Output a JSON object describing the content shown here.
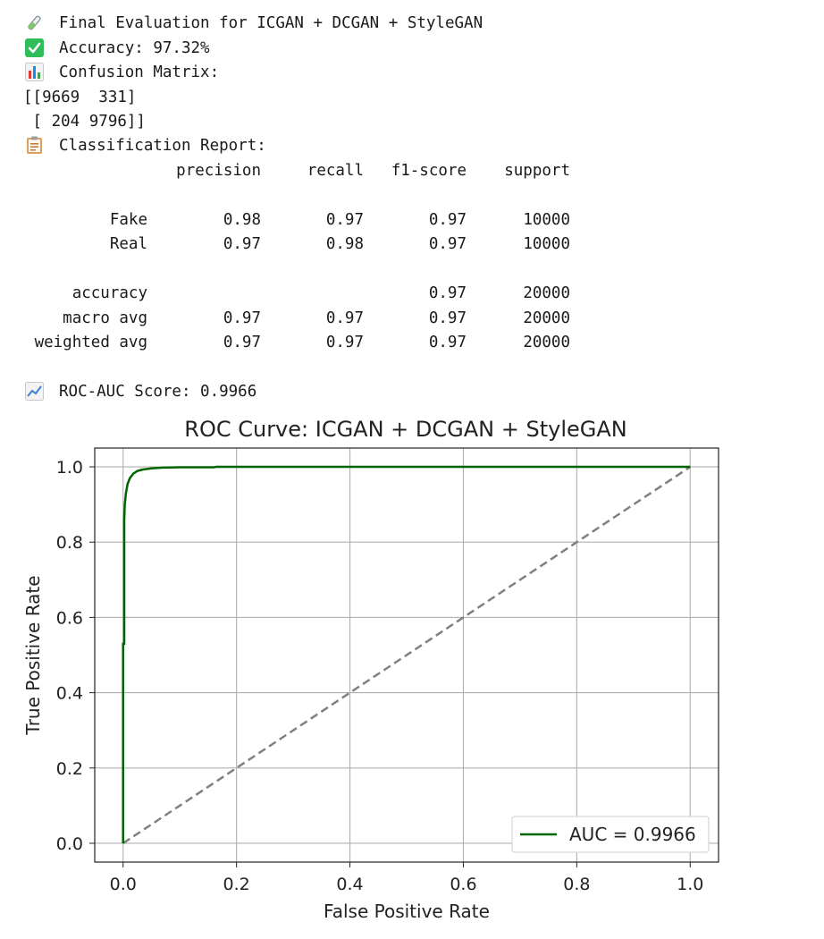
{
  "output": {
    "title_icon": "test-tube-icon",
    "title": "Final Evaluation for ICGAN + DCGAN + StyleGAN",
    "accuracy_icon": "check-mark-icon",
    "accuracy": "Accuracy: 97.32%",
    "cm_icon": "bar-chart-icon",
    "cm_heading": "Confusion Matrix:",
    "cm_rows": [
      "[[9669  331]",
      " [ 204 9796]]"
    ],
    "report_icon": "clipboard-icon",
    "report_heading": "Classification Report:",
    "report": {
      "columns": [
        "precision",
        "recall",
        "f1-score",
        "support"
      ],
      "rows": [
        {
          "label": "Fake",
          "precision": "0.98",
          "recall": "0.97",
          "f1": "0.97",
          "support": "10000"
        },
        {
          "label": "Real",
          "precision": "0.97",
          "recall": "0.98",
          "f1": "0.97",
          "support": "10000"
        },
        {
          "label": "accuracy",
          "precision": "",
          "recall": "",
          "f1": "0.97",
          "support": "20000"
        },
        {
          "label": "macro avg",
          "precision": "0.97",
          "recall": "0.97",
          "f1": "0.97",
          "support": "20000"
        },
        {
          "label": "weighted avg",
          "precision": "0.97",
          "recall": "0.97",
          "f1": "0.97",
          "support": "20000"
        }
      ]
    },
    "roc_icon": "trend-chart-icon",
    "roc_score": "ROC-AUC Score: 0.9966"
  },
  "chart_data": {
    "type": "line",
    "title": "ROC Curve: ICGAN + DCGAN + StyleGAN",
    "xlabel": "False Positive Rate",
    "ylabel": "True Positive Rate",
    "xlim": [
      -0.05,
      1.05
    ],
    "ylim": [
      -0.05,
      1.05
    ],
    "xticks": [
      "0.0",
      "0.2",
      "0.4",
      "0.6",
      "0.8",
      "1.0"
    ],
    "yticks": [
      "0.0",
      "0.2",
      "0.4",
      "0.6",
      "0.8",
      "1.0"
    ],
    "grid": true,
    "legend_position": "lower-right",
    "series": [
      {
        "name": "AUC = 0.9966",
        "color": "#006400",
        "style": "solid",
        "x": [
          0.0,
          0.0,
          0.002,
          0.002,
          0.003,
          0.005,
          0.008,
          0.012,
          0.018,
          0.025,
          0.035,
          0.05,
          0.07,
          0.1,
          0.16,
          0.165,
          1.0
        ],
        "y": [
          0.0,
          0.53,
          0.53,
          0.86,
          0.9,
          0.93,
          0.955,
          0.97,
          0.982,
          0.989,
          0.993,
          0.996,
          0.998,
          0.999,
          0.999,
          1.0,
          1.0
        ]
      },
      {
        "name": "",
        "color": "#808080",
        "style": "dashed",
        "x": [
          0.0,
          1.0
        ],
        "y": [
          0.0,
          1.0
        ]
      }
    ]
  }
}
